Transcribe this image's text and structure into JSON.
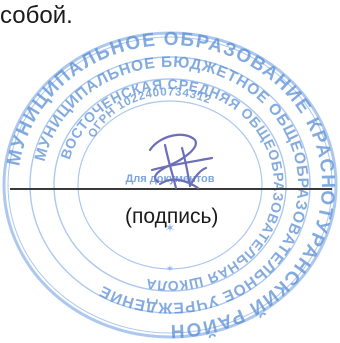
{
  "document": {
    "intro_text": "собой.",
    "signature_caption": "(подпись)"
  },
  "stamp": {
    "outer_ring_text": "МУНИЦИПАЛЬНОЕ ОБРАЗОВАНИЕ КРАСНОТУРАНСКИЙ РАЙОН",
    "middle_ring_text": "МУНИЦИПАЛЬНОЕ БЮДЖЕТНОЕ ОБЩЕОБРАЗОВАТЕЛЬНОЕ УЧРЕЖДЕНИЕ",
    "inner_ring_text": "ВОСТОЧЕНСКАЯ СРЕДНЯЯ ОБЩЕОБРАЗОВАТЕЛЬНАЯ ШКОЛА",
    "ogrn": "ОГРН 1022400734312",
    "center_text": "Для документов",
    "color": "#5b8fd6"
  },
  "signature": {
    "ink_color": "#6b6fb8"
  }
}
